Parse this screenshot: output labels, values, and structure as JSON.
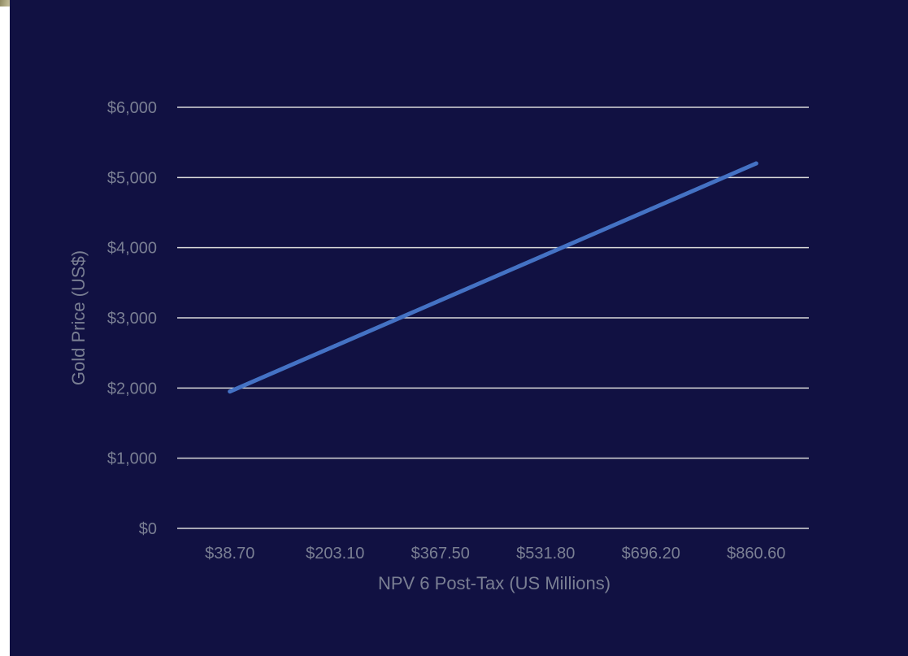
{
  "chart_data": {
    "type": "line",
    "title": "",
    "xlabel": "NPV 6 Post-Tax (US Millions)",
    "ylabel": "Gold Price (US$)",
    "categories": [
      "$38.70",
      "$203.10",
      "$367.50",
      "$531.80",
      "$696.20",
      "$860.60"
    ],
    "x": [
      38.7,
      203.1,
      367.5,
      531.8,
      696.2,
      860.6
    ],
    "y_tick_labels": [
      "$0",
      "$1,000",
      "$2,000",
      "$3,000",
      "$4,000",
      "$5,000",
      "$6,000"
    ],
    "ylim": [
      0,
      6000
    ],
    "series": [
      {
        "values": [
          1950,
          2600,
          3250,
          3900,
          4550,
          5200
        ]
      }
    ],
    "grid": true,
    "legend": "none"
  },
  "colors": {
    "background": "#111142",
    "line": "#4472c4",
    "grid": "#d9d9d9",
    "text": "#7a7f93"
  }
}
